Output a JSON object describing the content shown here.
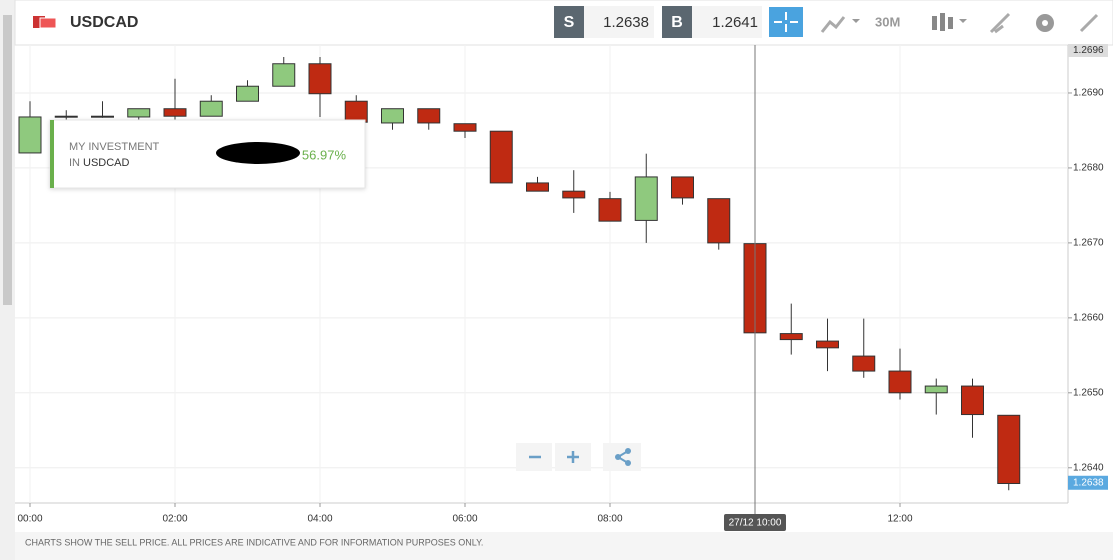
{
  "header": {
    "symbol": "USDCAD",
    "sell_label": "S",
    "sell_price": "1.2638",
    "buy_label": "B",
    "buy_price": "1.2641",
    "timeframe": "30M"
  },
  "investment": {
    "line1": "MY INVESTMENT",
    "line2_prefix": "IN",
    "line2_symbol": "USDCAD",
    "percent": "56.97%"
  },
  "chart_data": {
    "type": "candlestick",
    "categories": [
      "00:00",
      null,
      null,
      null,
      "02:00",
      null,
      null,
      null,
      "04:00",
      null,
      null,
      null,
      "06:00",
      null,
      null,
      null,
      "08:00",
      null,
      null,
      null,
      "10:00",
      null,
      null,
      null,
      "12:00",
      null,
      null,
      null
    ],
    "series": [
      {
        "up_color": "#8fc97e",
        "down_color": "#bf2a12",
        "open": [
          1.2682,
          1.26868,
          1.26868,
          1.26868,
          1.26879,
          1.26869,
          1.26889,
          1.26909,
          1.26939,
          1.26889,
          1.2686,
          1.26879,
          1.26859,
          1.26849,
          1.2678,
          1.26769,
          1.26759,
          1.2673,
          1.26788,
          1.26759,
          1.26699,
          1.26579,
          1.26569,
          1.26549,
          1.26529,
          1.265,
          1.26509,
          1.2647
        ],
        "high": [
          1.26889,
          1.26877,
          1.26889,
          1.26879,
          1.26919,
          1.26897,
          1.26917,
          1.26948,
          1.26948,
          1.26897,
          1.26879,
          1.26879,
          1.26859,
          1.26849,
          1.26788,
          1.26797,
          1.26768,
          1.26819,
          1.26788,
          1.26759,
          1.26699,
          1.26619,
          1.26599,
          1.26599,
          1.26559,
          1.26519,
          1.26519,
          1.2647
        ],
        "low": [
          1.2682,
          1.26864,
          1.26867,
          1.26864,
          1.26864,
          1.26869,
          1.26889,
          1.26909,
          1.26868,
          1.26857,
          1.26851,
          1.26851,
          1.2684,
          1.2678,
          1.26769,
          1.2674,
          1.26729,
          1.267,
          1.26751,
          1.26691,
          1.26569,
          1.26551,
          1.26529,
          1.2652,
          1.26491,
          1.26471,
          1.2644,
          1.2637
        ],
        "close": [
          1.26868,
          1.26869,
          1.26869,
          1.26879,
          1.26869,
          1.26889,
          1.26909,
          1.26939,
          1.26899,
          1.26861,
          1.26879,
          1.2686,
          1.26849,
          1.2678,
          1.26769,
          1.2676,
          1.26729,
          1.26788,
          1.2676,
          1.267,
          1.2658,
          1.26571,
          1.2656,
          1.26529,
          1.265,
          1.26509,
          1.26471,
          1.26379
        ]
      }
    ],
    "ylim": [
      1.26353,
      1.2696
    ],
    "yticks": [
      {
        "value": 1.264,
        "label": "1.2640"
      },
      {
        "value": 1.265,
        "label": "1.2650"
      },
      {
        "value": 1.266,
        "label": "1.2660"
      },
      {
        "value": 1.267,
        "label": "1.2670"
      },
      {
        "value": 1.268,
        "label": "1.2680"
      },
      {
        "value": 1.269,
        "label": "1.2690"
      }
    ],
    "top_label": {
      "value": 1.2696,
      "label": "1.2696"
    },
    "last_price": {
      "value": 1.2638,
      "label": "1.2638"
    },
    "crosshair_label": "27/12 10:00",
    "grid": true
  },
  "footer": {
    "disclaimer": "CHARTS SHOW THE SELL PRICE. ALL PRICES ARE INDICATIVE AND FOR INFORMATION PURPOSES ONLY."
  }
}
